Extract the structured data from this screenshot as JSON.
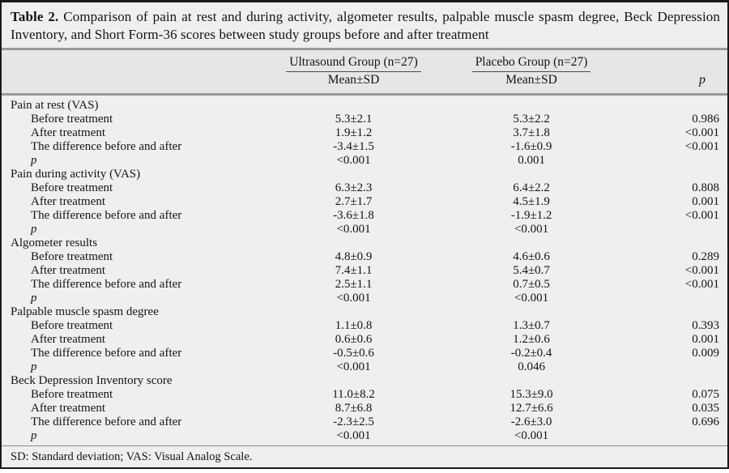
{
  "title": {
    "label": "Table 2.",
    "text": "Comparison of pain at rest and during activity, algometer results, palpable muscle spasm degree, Beck Depression Inventory, and Short Form-36 scores between study groups before and after treatment"
  },
  "header": {
    "group1": "Ultrasound Group (n=27)",
    "group2": "Placebo Group (n=27)",
    "mean_sd": "Mean±SD",
    "p_label": "p"
  },
  "sections": [
    {
      "label": "Pain at rest (VAS)",
      "rows": [
        {
          "label": "Before treatment",
          "us": "5.3±2.1",
          "placebo": "5.3±2.2",
          "p": "0.986"
        },
        {
          "label": "After treatment",
          "us": "1.9±1.2",
          "placebo": "3.7±1.8",
          "p": "<0.001"
        },
        {
          "label": "The difference before and after",
          "us": "-3.4±1.5",
          "placebo": "-1.6±0.9",
          "p": "<0.001"
        },
        {
          "label": "p",
          "italic": true,
          "us": "<0.001",
          "placebo": "0.001",
          "p": ""
        }
      ]
    },
    {
      "label": "Pain during activity (VAS)",
      "rows": [
        {
          "label": "Before treatment",
          "us": "6.3±2.3",
          "placebo": "6.4±2.2",
          "p": "0.808"
        },
        {
          "label": "After treatment",
          "us": "2.7±1.7",
          "placebo": "4.5±1.9",
          "p": "0.001"
        },
        {
          "label": "The difference before and after",
          "us": "-3.6±1.8",
          "placebo": "-1.9±1.2",
          "p": "<0.001"
        },
        {
          "label": "p",
          "italic": true,
          "us": "<0.001",
          "placebo": "<0.001",
          "p": ""
        }
      ]
    },
    {
      "label": "Algometer results",
      "rows": [
        {
          "label": "Before treatment",
          "us": "4.8±0.9",
          "placebo": "4.6±0.6",
          "p": "0.289"
        },
        {
          "label": "After treatment",
          "us": "7.4±1.1",
          "placebo": "5.4±0.7",
          "p": "<0.001"
        },
        {
          "label": "The difference before and after",
          "us": "2.5±1.1",
          "placebo": "0.7±0.5",
          "p": "<0.001"
        },
        {
          "label": "p",
          "italic": true,
          "us": "<0.001",
          "placebo": "<0.001",
          "p": ""
        }
      ]
    },
    {
      "label": "Palpable muscle spasm degree",
      "rows": [
        {
          "label": "Before treatment",
          "us": "1.1±0.8",
          "placebo": "1.3±0.7",
          "p": "0.393"
        },
        {
          "label": "After treatment",
          "us": "0.6±0.6",
          "placebo": "1.2±0.6",
          "p": "0.001"
        },
        {
          "label": "The difference before and after",
          "us": "-0.5±0.6",
          "placebo": "-0.2±0.4",
          "p": "0.009"
        },
        {
          "label": "p",
          "italic": true,
          "us": "<0.001",
          "placebo": "0.046",
          "p": ""
        }
      ]
    },
    {
      "label": "Beck Depression Inventory score",
      "rows": [
        {
          "label": "Before treatment",
          "us": "11.0±8.2",
          "placebo": "15.3±9.0",
          "p": "0.075"
        },
        {
          "label": "After treatment",
          "us": "8.7±6.8",
          "placebo": "12.7±6.6",
          "p": "0.035"
        },
        {
          "label": "The difference before and after",
          "us": "-2.3±2.5",
          "placebo": "-2.6±3.0",
          "p": "0.696"
        },
        {
          "label": "p",
          "italic": true,
          "us": "<0.001",
          "placebo": "<0.001",
          "p": ""
        }
      ]
    }
  ],
  "footnote": "SD: Standard deviation; VAS: Visual Analog Scale.",
  "colors": {
    "page_bg": "#efefef",
    "header_band_bg": "#e4e6e8",
    "rule_color": "#9a9a9a",
    "border_color": "#1a1a1a",
    "text_color": "#141414"
  }
}
